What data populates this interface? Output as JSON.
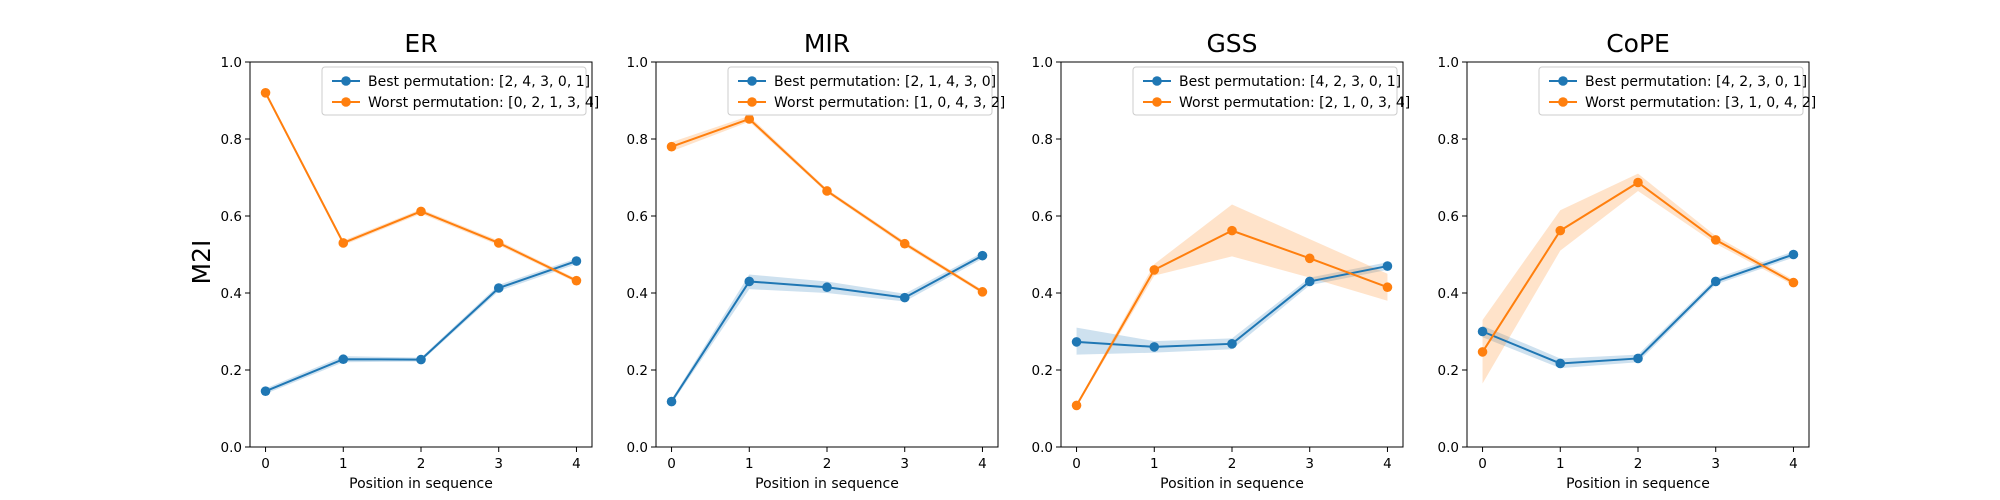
{
  "figure": {
    "ylabel": "M2I"
  },
  "colors": {
    "best": "#1f77b4",
    "worst": "#ff7f0e"
  },
  "chart_data": [
    {
      "type": "line",
      "title": "ER",
      "xlabel": "Position in sequence",
      "ylabel": "M2I",
      "x": [
        0,
        1,
        2,
        3,
        4
      ],
      "xlim": [
        -0.2,
        4.2
      ],
      "ylim": [
        0,
        1.0
      ],
      "xticks": [
        "0",
        "1",
        "2",
        "3",
        "4"
      ],
      "yticks": [
        "0.0",
        "0.2",
        "0.4",
        "0.6",
        "0.8",
        "1.0"
      ],
      "legend_position": "top-right",
      "series": [
        {
          "name": "Best permutation: [2, 4, 3, 0, 1]",
          "values": [
            0.145,
            0.228,
            0.227,
            0.413,
            0.483
          ],
          "band_lower": [
            0.138,
            0.22,
            0.222,
            0.405,
            0.475
          ],
          "band_upper": [
            0.152,
            0.236,
            0.232,
            0.421,
            0.49
          ]
        },
        {
          "name": "Worst permutation: [0, 2, 1, 3, 4]",
          "values": [
            0.92,
            0.53,
            0.612,
            0.53,
            0.432
          ],
          "band_lower": [
            0.915,
            0.524,
            0.606,
            0.524,
            0.427
          ],
          "band_upper": [
            0.925,
            0.536,
            0.618,
            0.536,
            0.437
          ]
        }
      ]
    },
    {
      "type": "line",
      "title": "MIR",
      "xlabel": "Position in sequence",
      "ylabel": "",
      "x": [
        0,
        1,
        2,
        3,
        4
      ],
      "xlim": [
        -0.2,
        4.2
      ],
      "ylim": [
        0,
        1.0
      ],
      "xticks": [
        "0",
        "1",
        "2",
        "3",
        "4"
      ],
      "yticks": [
        "0.0",
        "0.2",
        "0.4",
        "0.6",
        "0.8",
        "1.0"
      ],
      "legend_position": "top-right",
      "series": [
        {
          "name": "Best permutation: [2, 1, 4, 3, 0]",
          "values": [
            0.118,
            0.43,
            0.415,
            0.388,
            0.497
          ],
          "band_lower": [
            0.112,
            0.41,
            0.4,
            0.378,
            0.489
          ],
          "band_upper": [
            0.124,
            0.448,
            0.43,
            0.398,
            0.505
          ]
        },
        {
          "name": "Worst permutation: [1, 0, 4, 3, 2]",
          "values": [
            0.78,
            0.852,
            0.665,
            0.528,
            0.403
          ],
          "band_lower": [
            0.768,
            0.845,
            0.66,
            0.522,
            0.398
          ],
          "band_upper": [
            0.792,
            0.86,
            0.67,
            0.534,
            0.408
          ]
        }
      ]
    },
    {
      "type": "line",
      "title": "GSS",
      "xlabel": "Position in sequence",
      "ylabel": "",
      "x": [
        0,
        1,
        2,
        3,
        4
      ],
      "xlim": [
        -0.2,
        4.2
      ],
      "ylim": [
        0,
        1.0
      ],
      "xticks": [
        "0",
        "1",
        "2",
        "3",
        "4"
      ],
      "yticks": [
        "0.0",
        "0.2",
        "0.4",
        "0.6",
        "0.8",
        "1.0"
      ],
      "legend_position": "top-right",
      "series": [
        {
          "name": "Best permutation: [4, 2, 3, 0, 1]",
          "values": [
            0.273,
            0.26,
            0.268,
            0.43,
            0.47
          ],
          "band_lower": [
            0.24,
            0.245,
            0.254,
            0.42,
            0.46
          ],
          "band_upper": [
            0.31,
            0.275,
            0.282,
            0.44,
            0.48
          ]
        },
        {
          "name": "Worst permutation: [2, 1, 0, 3, 4]",
          "values": [
            0.108,
            0.46,
            0.562,
            0.49,
            0.415
          ],
          "band_lower": [
            0.104,
            0.445,
            0.495,
            0.44,
            0.38
          ],
          "band_upper": [
            0.112,
            0.475,
            0.63,
            0.54,
            0.45
          ]
        }
      ]
    },
    {
      "type": "line",
      "title": "CoPE",
      "xlabel": "Position in sequence",
      "ylabel": "",
      "x": [
        0,
        1,
        2,
        3,
        4
      ],
      "xlim": [
        -0.2,
        4.2
      ],
      "ylim": [
        0,
        1.0
      ],
      "xticks": [
        "0",
        "1",
        "2",
        "3",
        "4"
      ],
      "yticks": [
        "0.0",
        "0.2",
        "0.4",
        "0.6",
        "0.8",
        "1.0"
      ],
      "legend_position": "top-right",
      "series": [
        {
          "name": "Best permutation: [4, 2, 3, 0, 1]",
          "values": [
            0.3,
            0.217,
            0.23,
            0.43,
            0.5
          ],
          "band_lower": [
            0.285,
            0.205,
            0.22,
            0.422,
            0.492
          ],
          "band_upper": [
            0.315,
            0.23,
            0.24,
            0.438,
            0.508
          ]
        },
        {
          "name": "Worst permutation: [3, 1, 0, 4, 2]",
          "values": [
            0.247,
            0.562,
            0.687,
            0.538,
            0.427
          ],
          "band_lower": [
            0.165,
            0.51,
            0.665,
            0.528,
            0.42
          ],
          "band_upper": [
            0.33,
            0.615,
            0.71,
            0.548,
            0.434
          ]
        }
      ]
    }
  ]
}
